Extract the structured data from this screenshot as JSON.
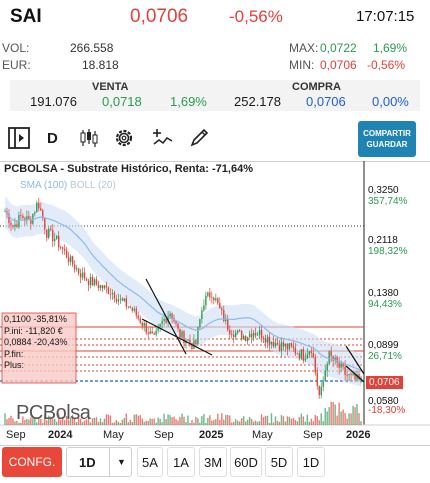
{
  "header": {
    "ticker": "SAI",
    "price": "0,0706",
    "change": "-0,56%",
    "time": "17:07:15"
  },
  "stats": {
    "vol_label": "VOL:",
    "vol_value": "266.558",
    "eur_label": "EUR:",
    "eur_value": "18.818",
    "max_label": "MAX:",
    "max_value": "0,0722",
    "max_pct": "1,69%",
    "min_label": "MIN:",
    "min_value": "0,0706",
    "min_pct": "-0,56%"
  },
  "bidask": {
    "venta_label": "VENTA",
    "venta_qty": "191.076",
    "venta_price": "0,0718",
    "venta_pct": "1,69%",
    "compra_label": "COMPRA",
    "compra_qty": "252.178",
    "compra_price": "0,0706",
    "compra_pct": "0,00%"
  },
  "toolbar": {
    "timeframe": "D",
    "share_line1": "COMPARTIR",
    "share_line2": "GUARDAR"
  },
  "chart": {
    "title": "PCBOLSA - Substrate Histórico, Renta: -71,64%",
    "legend_sma": "SMA (100)",
    "legend_boll": "BOLL (20)",
    "watermark": "PCBolsa",
    "box": {
      "l1": "0,1100  -35,81%",
      "l2": "P.ini: -11,820 €",
      "l3": "0,0884  -20,43%",
      "l4": "P.fin:",
      "l5": "Plus:"
    },
    "colors": {
      "up": "#2a9a52",
      "down": "#e0413a",
      "sma": "#8fb8e8",
      "boll": "#cfe0f3"
    }
  },
  "chart_data": {
    "type": "line",
    "x_ticks": [
      "Sep",
      "2024",
      "May",
      "Sep",
      "2025",
      "May",
      "Sep",
      "2026"
    ],
    "y_levels": [
      {
        "price": "0,3250",
        "pct": "357,74%"
      },
      {
        "price": "0,2118",
        "pct": "198,32%"
      },
      {
        "price": "0,1380",
        "pct": "94,43%"
      },
      {
        "price": "0,0899",
        "pct": "26,71%"
      },
      {
        "price": "0,0706",
        "pct": ""
      },
      {
        "price": "0,0580",
        "pct": "-18,30%"
      }
    ],
    "current_price": "0,0706",
    "series": [
      {
        "values": [
          0.27,
          0.24,
          0.26,
          0.25,
          0.29,
          0.23,
          0.22,
          0.2,
          0.18,
          0.165,
          0.155,
          0.15,
          0.145,
          0.14,
          0.13,
          0.125,
          0.115,
          0.105,
          0.095,
          0.11,
          0.12,
          0.1,
          0.095,
          0.09,
          0.13,
          0.14,
          0.12,
          0.105,
          0.1,
          0.098,
          0.102,
          0.1,
          0.095,
          0.092,
          0.09,
          0.088,
          0.085,
          0.09,
          0.06,
          0.085,
          0.08,
          0.075,
          0.072,
          0.0706
        ]
      }
    ]
  },
  "bottom": {
    "config": "CONFG.",
    "selected": "1D",
    "periods": [
      "5A",
      "1A",
      "3M",
      "60D",
      "5D",
      "1D"
    ]
  }
}
